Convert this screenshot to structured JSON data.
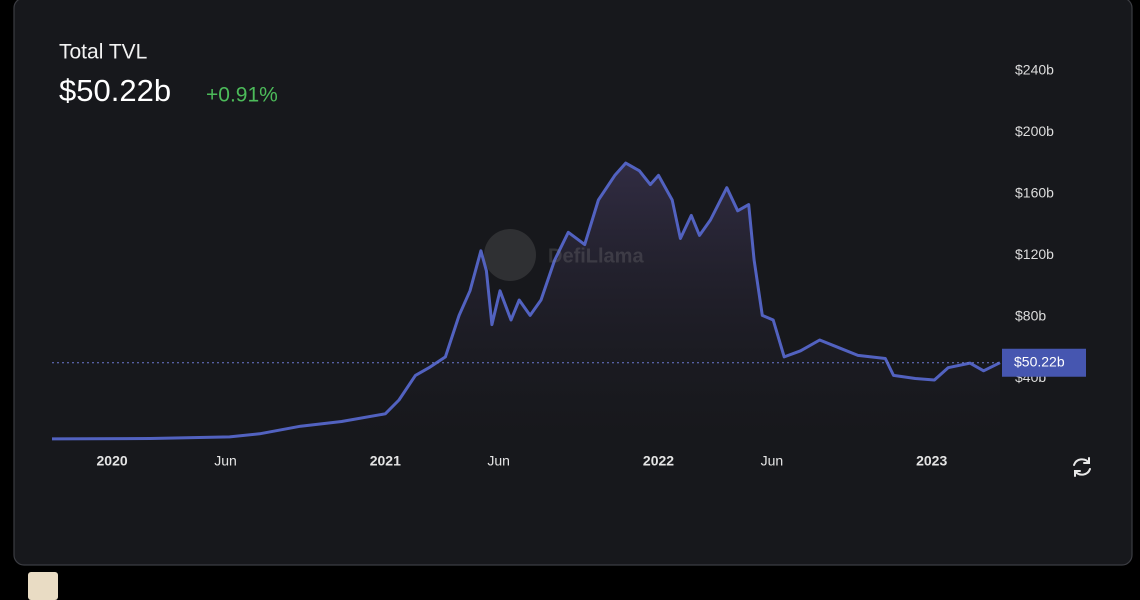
{
  "chart_data": {
    "type": "area",
    "title": "Total TVL",
    "current_label": "$50.22b",
    "current_value": 50.22,
    "change": "+0.91%",
    "watermark": "DefiLlama",
    "color": "#5262c0",
    "x": [
      2019.78,
      2020.14,
      2020.43,
      2020.54,
      2020.69,
      2020.84,
      2021.0,
      2021.05,
      2021.11,
      2021.16,
      2021.22,
      2021.27,
      2021.31,
      2021.35,
      2021.37,
      2021.39,
      2021.42,
      2021.46,
      2021.49,
      2021.53,
      2021.57,
      2021.62,
      2021.67,
      2021.73,
      2021.78,
      2021.84,
      2021.88,
      2021.93,
      2021.97,
      2022.0,
      2022.05,
      2022.08,
      2022.12,
      2022.15,
      2022.19,
      2022.25,
      2022.29,
      2022.33,
      2022.35,
      2022.38,
      2022.42,
      2022.46,
      2022.52,
      2022.59,
      2022.66,
      2022.73,
      2022.83,
      2022.86,
      2022.94,
      2023.01,
      2023.06,
      2023.14,
      2023.19,
      2023.25
    ],
    "values": [
      0.7,
      1,
      2,
      4,
      9,
      12,
      17,
      26,
      42,
      47,
      54,
      81,
      97,
      123,
      110,
      75,
      97,
      78,
      91,
      81,
      91,
      117,
      135,
      127,
      156,
      172,
      180,
      175,
      166,
      172,
      156,
      131,
      146,
      133,
      143,
      164,
      149,
      153,
      117,
      81,
      78,
      54,
      58,
      65,
      60,
      55,
      53,
      42,
      40,
      39,
      47,
      50,
      45,
      50.22
    ],
    "xlim": [
      2019.78,
      2023.25
    ],
    "xticks": [
      {
        "value": 2020.0,
        "label": "2020"
      },
      {
        "value": 2020.415,
        "label": "Jun"
      },
      {
        "value": 2021.0,
        "label": "2021"
      },
      {
        "value": 2021.415,
        "label": "Jun"
      },
      {
        "value": 2022.0,
        "label": "2022"
      },
      {
        "value": 2022.415,
        "label": "Jun"
      },
      {
        "value": 2023.0,
        "label": "2023"
      }
    ],
    "ylim": [
      0,
      260
    ],
    "yticks": [
      {
        "value": 40,
        "label": "$40b"
      },
      {
        "value": 80,
        "label": "$80b"
      },
      {
        "value": 120,
        "label": "$120b"
      },
      {
        "value": 160,
        "label": "$160b"
      },
      {
        "value": 200,
        "label": "$200b"
      },
      {
        "value": 240,
        "label": "$240b"
      }
    ]
  }
}
